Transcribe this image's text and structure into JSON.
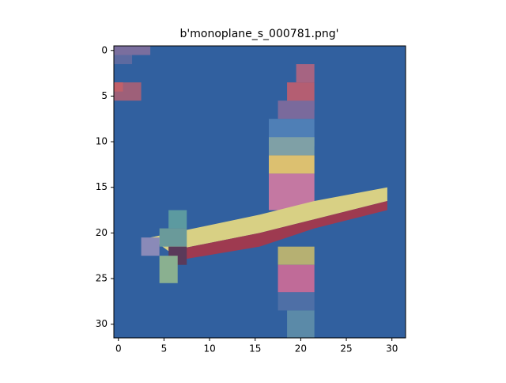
{
  "chart_data": {
    "type": "image",
    "title": "b'monoplane_s_000781.png'",
    "xlim": [
      -0.5,
      31.5
    ],
    "ylim": [
      31.5,
      -0.5
    ],
    "xticks": [
      0,
      5,
      10,
      15,
      20,
      25,
      30
    ],
    "yticks": [
      0,
      5,
      10,
      15,
      20,
      25,
      30
    ]
  }
}
